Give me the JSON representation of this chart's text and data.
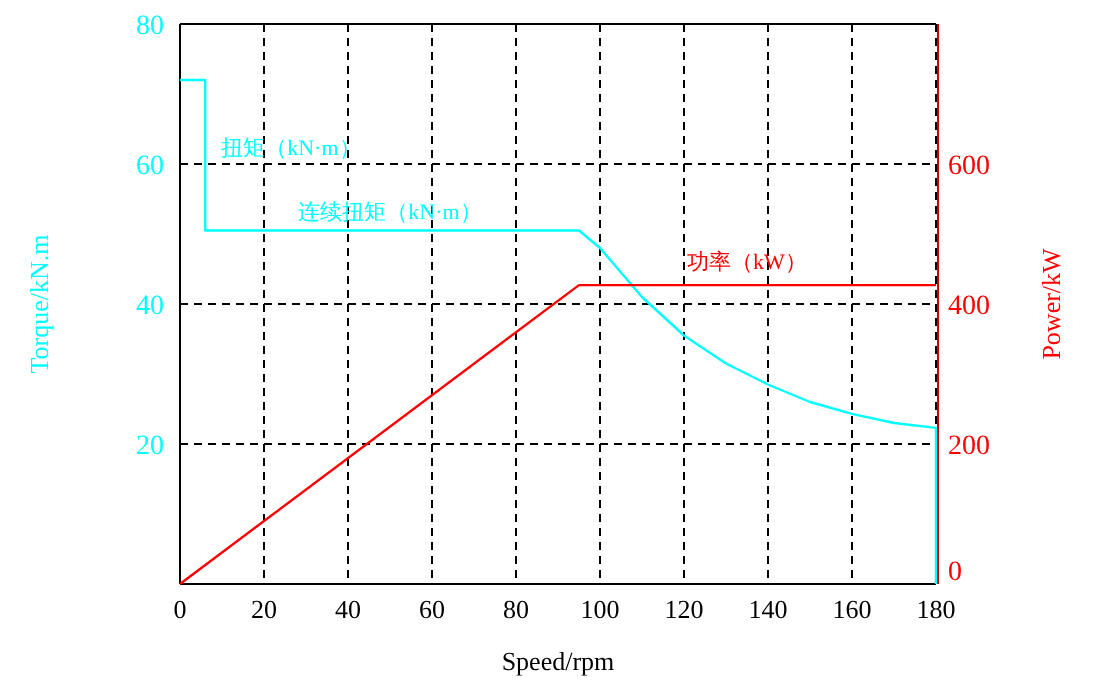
{
  "chart_data": {
    "type": "line",
    "xlabel": "Speed/rpm",
    "ylabel": "Torque/kN.m",
    "y2label": "Power/kW",
    "xlim": [
      0,
      180
    ],
    "xticks": [
      0,
      20,
      40,
      60,
      80,
      100,
      120,
      140,
      160,
      180
    ],
    "ylim": [
      0,
      80
    ],
    "yticks": [
      20,
      40,
      60,
      80
    ],
    "y2lim": [
      0,
      800
    ],
    "y2ticks": [
      0,
      200,
      400,
      600
    ],
    "grid": true,
    "legend": false,
    "line_style": "solid",
    "marker": "none",
    "series": [
      {
        "name": "扭矩（kN·m）",
        "color": "#00ffff",
        "x": [
          0,
          6,
          6,
          95,
          100,
          110,
          120,
          130,
          140,
          150,
          160,
          170,
          180,
          180
        ],
        "values": [
          72,
          72,
          50.5,
          50.5,
          48,
          41,
          35.5,
          31.5,
          28.5,
          26,
          24.3,
          23,
          22.3,
          0
        ]
      },
      {
        "name": "功率（kW）",
        "color": "#ff0000",
        "axis": "y2",
        "x": [
          0,
          95,
          180
        ],
        "values": [
          0,
          427,
          427
        ]
      }
    ],
    "annotations": [
      {
        "text": "连续扭矩（kN·m）",
        "x": 50,
        "y": 50.5
      }
    ]
  }
}
